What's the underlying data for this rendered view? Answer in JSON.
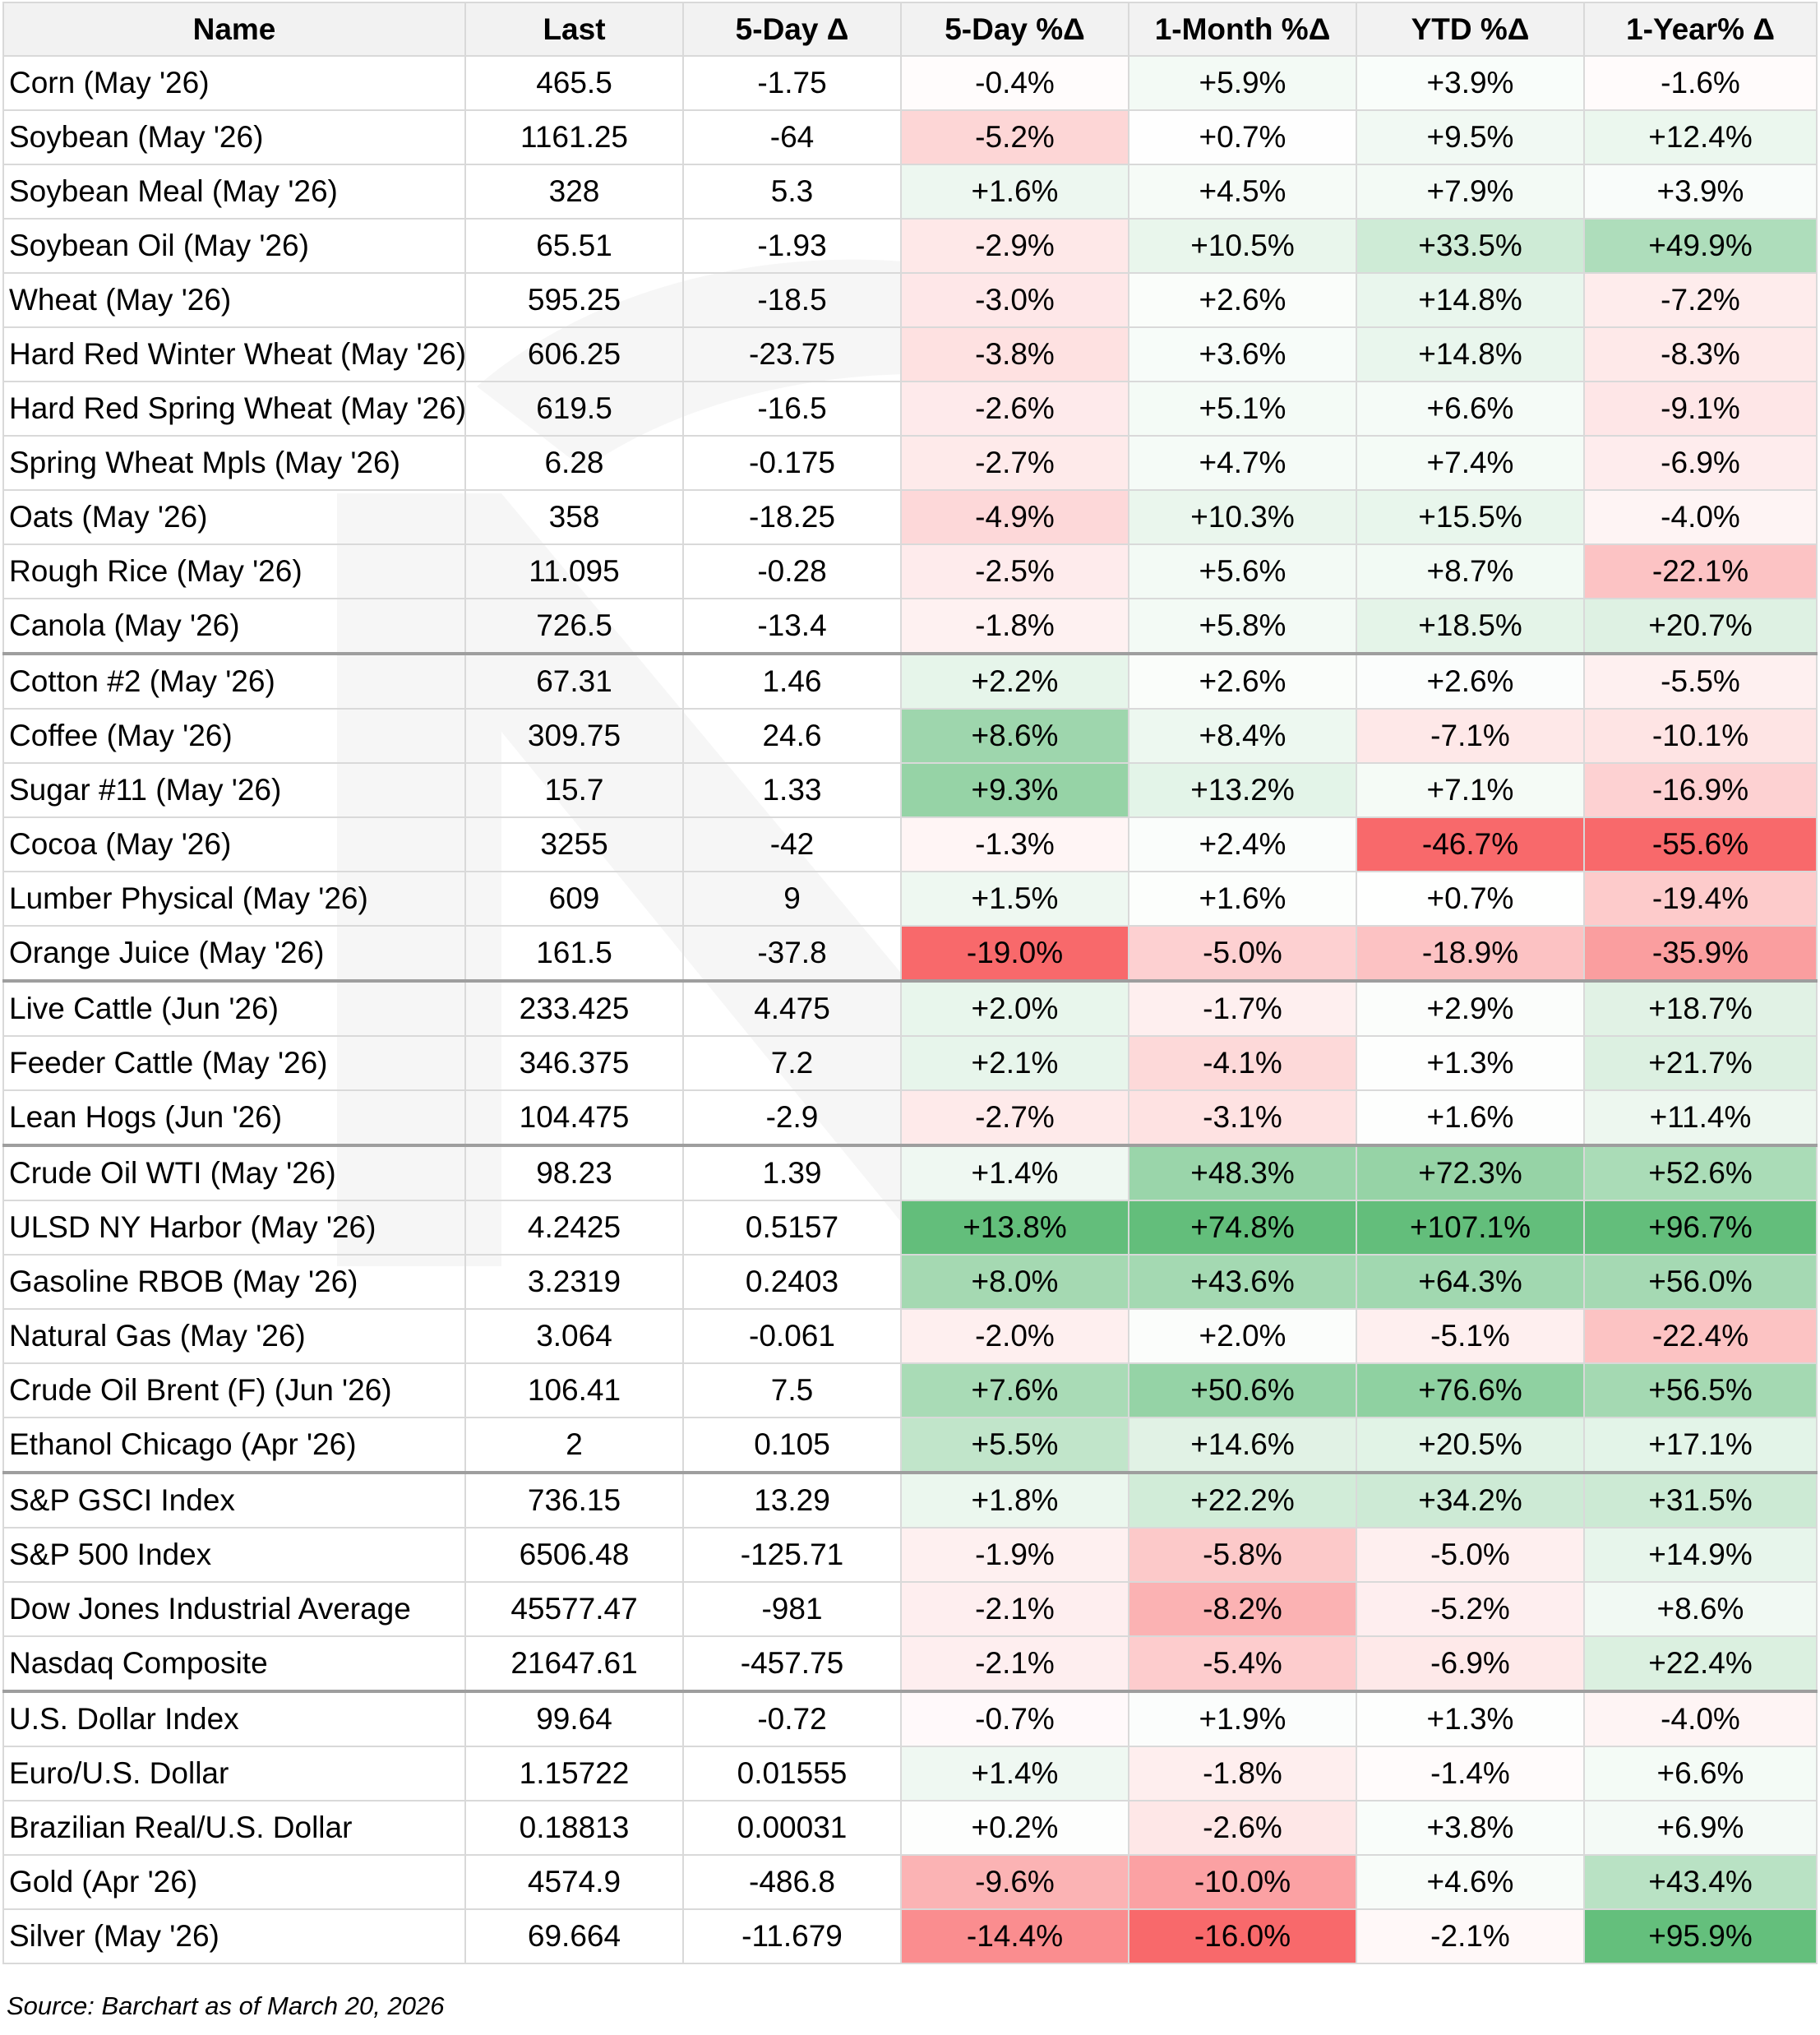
{
  "table": {
    "columns": [
      "Name",
      "Last",
      "5-Day Δ",
      "5-Day %Δ",
      "1-Month %Δ",
      "YTD %Δ",
      "1-Year% Δ"
    ],
    "groups": [
      {
        "rows": [
          [
            "Corn (May '26)",
            "465.5",
            "-1.75",
            "-0.4%",
            "+5.9%",
            "+3.9%",
            "-1.6%"
          ],
          [
            "Soybean (May '26)",
            "1161.25",
            "-64",
            "-5.2%",
            "+0.7%",
            "+9.5%",
            "+12.4%"
          ],
          [
            "Soybean Meal (May '26)",
            "328",
            "5.3",
            "+1.6%",
            "+4.5%",
            "+7.9%",
            "+3.9%"
          ],
          [
            "Soybean Oil (May '26)",
            "65.51",
            "-1.93",
            "-2.9%",
            "+10.5%",
            "+33.5%",
            "+49.9%"
          ],
          [
            "Wheat (May '26)",
            "595.25",
            "-18.5",
            "-3.0%",
            "+2.6%",
            "+14.8%",
            "-7.2%"
          ],
          [
            "Hard Red Winter Wheat (May '26)",
            "606.25",
            "-23.75",
            "-3.8%",
            "+3.6%",
            "+14.8%",
            "-8.3%"
          ],
          [
            "Hard Red Spring Wheat (May '26)",
            "619.5",
            "-16.5",
            "-2.6%",
            "+5.1%",
            "+6.6%",
            "-9.1%"
          ],
          [
            "Spring Wheat Mpls (May '26)",
            "6.28",
            "-0.175",
            "-2.7%",
            "+4.7%",
            "+7.4%",
            "-6.9%"
          ],
          [
            "Oats (May '26)",
            "358",
            "-18.25",
            "-4.9%",
            "+10.3%",
            "+15.5%",
            "-4.0%"
          ],
          [
            "Rough Rice (May '26)",
            "11.095",
            "-0.28",
            "-2.5%",
            "+5.6%",
            "+8.7%",
            "-22.1%"
          ],
          [
            "Canola (May '26)",
            "726.5",
            "-13.4",
            "-1.8%",
            "+5.8%",
            "+18.5%",
            "+20.7%"
          ]
        ]
      },
      {
        "rows": [
          [
            "Cotton #2 (May '26)",
            "67.31",
            "1.46",
            "+2.2%",
            "+2.6%",
            "+2.6%",
            "-5.5%"
          ],
          [
            "Coffee (May '26)",
            "309.75",
            "24.6",
            "+8.6%",
            "+8.4%",
            "-7.1%",
            "-10.1%"
          ],
          [
            "Sugar #11 (May '26)",
            "15.7",
            "1.33",
            "+9.3%",
            "+13.2%",
            "+7.1%",
            "-16.9%"
          ],
          [
            "Cocoa (May '26)",
            "3255",
            "-42",
            "-1.3%",
            "+2.4%",
            "-46.7%",
            "-55.6%"
          ],
          [
            "Lumber Physical (May '26)",
            "609",
            "9",
            "+1.5%",
            "+1.6%",
            "+0.7%",
            "-19.4%"
          ],
          [
            "Orange Juice (May '26)",
            "161.5",
            "-37.8",
            "-19.0%",
            "-5.0%",
            "-18.9%",
            "-35.9%"
          ]
        ]
      },
      {
        "rows": [
          [
            "Live Cattle (Jun '26)",
            "233.425",
            "4.475",
            "+2.0%",
            "-1.7%",
            "+2.9%",
            "+18.7%"
          ],
          [
            "Feeder Cattle (May '26)",
            "346.375",
            "7.2",
            "+2.1%",
            "-4.1%",
            "+1.3%",
            "+21.7%"
          ],
          [
            "Lean Hogs (Jun '26)",
            "104.475",
            "-2.9",
            "-2.7%",
            "-3.1%",
            "+1.6%",
            "+11.4%"
          ]
        ]
      },
      {
        "rows": [
          [
            "Crude Oil WTI (May '26)",
            "98.23",
            "1.39",
            "+1.4%",
            "+48.3%",
            "+72.3%",
            "+52.6%"
          ],
          [
            "ULSD NY Harbor (May '26)",
            "4.2425",
            "0.5157",
            "+13.8%",
            "+74.8%",
            "+107.1%",
            "+96.7%"
          ],
          [
            "Gasoline RBOB (May '26)",
            "3.2319",
            "0.2403",
            "+8.0%",
            "+43.6%",
            "+64.3%",
            "+56.0%"
          ],
          [
            "Natural Gas (May '26)",
            "3.064",
            "-0.061",
            "-2.0%",
            "+2.0%",
            "-5.1%",
            "-22.4%"
          ],
          [
            "Crude Oil Brent (F) (Jun '26)",
            "106.41",
            "7.5",
            "+7.6%",
            "+50.6%",
            "+76.6%",
            "+56.5%"
          ],
          [
            "Ethanol Chicago (Apr '26)",
            "2",
            "0.105",
            "+5.5%",
            "+14.6%",
            "+20.5%",
            "+17.1%"
          ]
        ]
      },
      {
        "rows": [
          [
            "S&P GSCI Index",
            "736.15",
            "13.29",
            "+1.8%",
            "+22.2%",
            "+34.2%",
            "+31.5%"
          ],
          [
            "S&P 500 Index",
            "6506.48",
            "-125.71",
            "-1.9%",
            "-5.8%",
            "-5.0%",
            "+14.9%"
          ],
          [
            "Dow Jones Industrial Average",
            "45577.47",
            "-981",
            "-2.1%",
            "-8.2%",
            "-5.2%",
            "+8.6%"
          ],
          [
            "Nasdaq Composite",
            "21647.61",
            "-457.75",
            "-2.1%",
            "-5.4%",
            "-6.9%",
            "+22.4%"
          ]
        ]
      },
      {
        "rows": [
          [
            "U.S. Dollar Index",
            "99.64",
            "-0.72",
            "-0.7%",
            "+1.9%",
            "+1.3%",
            "-4.0%"
          ],
          [
            "Euro/U.S. Dollar",
            "1.15722",
            "0.01555",
            "+1.4%",
            "-1.8%",
            "-1.4%",
            "+6.6%"
          ],
          [
            "Brazilian Real/U.S. Dollar",
            "0.18813",
            "0.00031",
            "+0.2%",
            "-2.6%",
            "+3.8%",
            "+6.9%"
          ],
          [
            "Gold (Apr '26)",
            "4574.9",
            "-486.8",
            "-9.6%",
            "-10.0%",
            "+4.6%",
            "+43.4%"
          ],
          [
            "Silver (May '26)",
            "69.664",
            "-11.679",
            "-14.4%",
            "-16.0%",
            "-2.1%",
            "+95.9%"
          ]
        ]
      }
    ]
  },
  "footer": {
    "source": "Source: Barchart as of March 20, 2026"
  },
  "colors": {
    "positive": "#63be7b",
    "negative": "#f8696b",
    "neutral": "#ffffff",
    "header_bg": "#f2f2f2",
    "gridline": "#d9d9d9",
    "group_divider": "#9e9e9e"
  }
}
